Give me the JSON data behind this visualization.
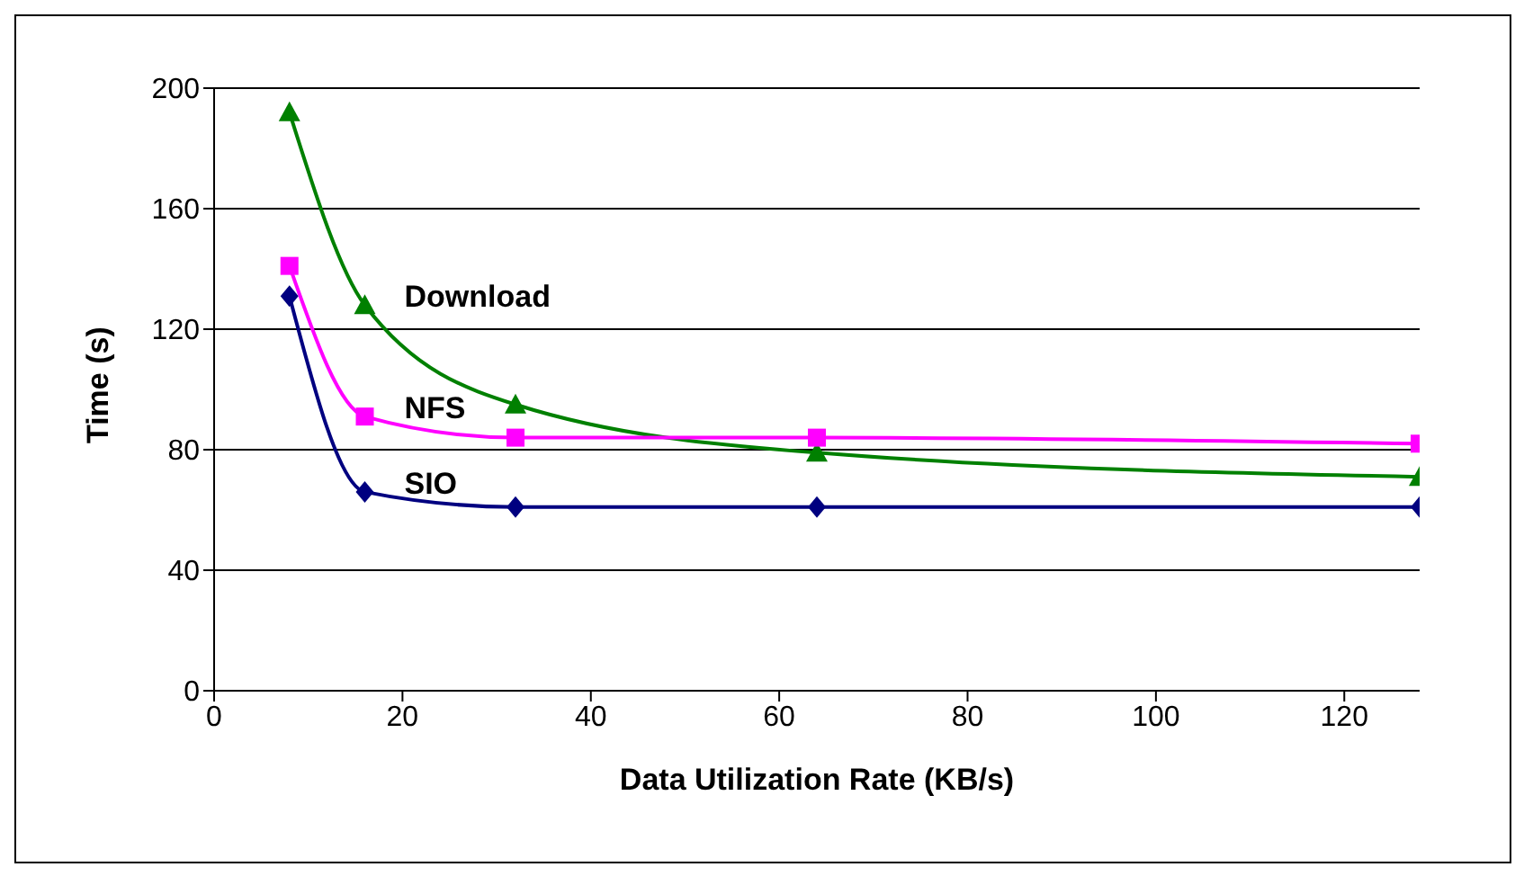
{
  "chart_data": {
    "type": "line",
    "xlabel": "Data Utilization Rate (KB/s)",
    "ylabel": "Time (s)",
    "x": [
      8,
      16,
      32,
      64,
      128
    ],
    "series": [
      {
        "name": "Download",
        "color": "#008000",
        "marker": "triangle",
        "values": [
          192,
          128,
          95,
          79,
          71
        ]
      },
      {
        "name": "NFS",
        "color": "#ff00ff",
        "marker": "square",
        "values": [
          141,
          91,
          84,
          84,
          82
        ]
      },
      {
        "name": "SIO",
        "color": "#000080",
        "marker": "diamond",
        "values": [
          131,
          66,
          61,
          61,
          61
        ]
      }
    ],
    "xlim": [
      0,
      128
    ],
    "xticks": [
      0,
      20,
      40,
      60,
      80,
      100,
      120
    ],
    "ylim": [
      0,
      200
    ],
    "yticks": [
      0,
      40,
      80,
      120,
      160,
      200
    ],
    "grid": "y"
  }
}
